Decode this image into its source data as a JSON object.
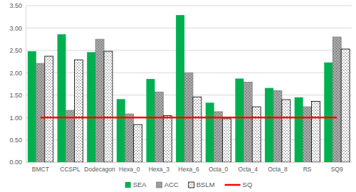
{
  "chart_data": {
    "type": "bar",
    "categories": [
      "BMCT",
      "CCSPL",
      "Dodecagon",
      "Hexa_0",
      "Hexa_3",
      "Hexa_6",
      "Octa_0",
      "Octa_4",
      "Octa_8",
      "RS",
      "SQ9"
    ],
    "series": [
      {
        "name": "SEA",
        "color": "#00b050",
        "values": [
          2.48,
          2.86,
          2.46,
          1.41,
          1.86,
          3.29,
          1.33,
          1.87,
          1.66,
          1.45,
          2.23
        ]
      },
      {
        "name": "ACC",
        "color": "#a6a6a6",
        "values": [
          2.21,
          1.16,
          2.75,
          1.08,
          1.57,
          2.0,
          1.13,
          1.79,
          1.6,
          1.24,
          2.8
        ]
      },
      {
        "name": "BSLM",
        "color": "#ffffff",
        "values": [
          2.37,
          2.29,
          2.48,
          0.84,
          1.04,
          1.46,
          0.97,
          1.24,
          1.4,
          1.36,
          2.53
        ]
      },
      {
        "name": "SQ",
        "type": "line",
        "color": "#ff0000",
        "values": [
          1.0,
          1.0,
          1.0,
          1.0,
          1.0,
          1.0,
          1.0,
          1.0,
          1.0,
          1.0,
          1.0
        ]
      }
    ],
    "ylim": [
      0,
      3.5
    ],
    "yticks": [
      {
        "value": 0,
        "label": "0.00"
      },
      {
        "value": 0.5,
        "label": "0.50"
      },
      {
        "value": 1,
        "label": "1.00"
      },
      {
        "value": 1.5,
        "label": "1.50"
      },
      {
        "value": 2,
        "label": "2.00"
      },
      {
        "value": 2.5,
        "label": "2.50"
      },
      {
        "value": 3,
        "label": "3.00"
      },
      {
        "value": 3.5,
        "label": "3.50"
      }
    ],
    "grid": true,
    "legend": "bottom"
  }
}
